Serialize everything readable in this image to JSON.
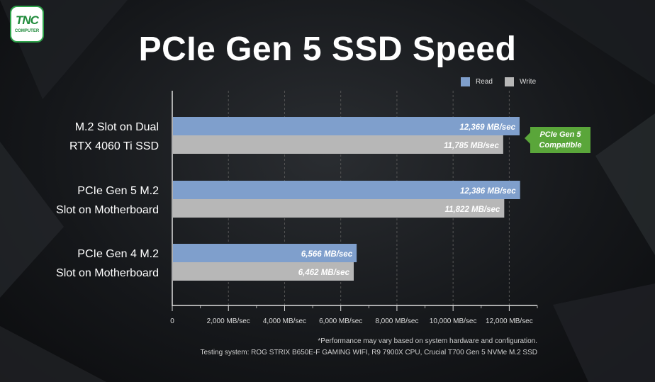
{
  "logo": {
    "main": "TNC",
    "sub": "COMPUTER"
  },
  "colors": {
    "read": "#7f9fcc",
    "write": "#b7b7b7",
    "badge": "#5aa63a"
  },
  "legend": {
    "read": "Read",
    "write": "Write"
  },
  "badge": {
    "line1": "PCIe Gen 5",
    "line2": "Compatible"
  },
  "footnotes": [
    "*Performance may vary based on system hardware and configuration.",
    "Testing system: ROG STRIX B650E-F GAMING WIFI, R9 7900X CPU, Crucial T700 Gen 5 NVMe M.2 SSD"
  ],
  "chart_data": {
    "type": "bar",
    "orientation": "horizontal",
    "title": "PCIe Gen 5 SSD Speed",
    "categories": [
      [
        "M.2 Slot on Dual",
        "RTX 4060 Ti SSD"
      ],
      [
        "PCIe Gen 5 M.2",
        "Slot on Motherboard"
      ],
      [
        "PCIe Gen 4 M.2",
        "Slot on Motherboard"
      ]
    ],
    "series": [
      {
        "name": "Read",
        "values": [
          12369,
          12386,
          6566
        ],
        "labels": [
          "12,369 MB/sec",
          "12,386 MB/sec",
          "6,566 MB/sec"
        ]
      },
      {
        "name": "Write",
        "values": [
          11785,
          11822,
          6462
        ],
        "labels": [
          "11,785 MB/sec",
          "11,822 MB/sec",
          "6,462 MB/sec"
        ]
      }
    ],
    "xlim": [
      0,
      13000
    ],
    "xticks": [
      0,
      2000,
      4000,
      6000,
      8000,
      10000,
      12000
    ],
    "xtick_labels": [
      "0",
      "2,000 MB/sec",
      "4,000 MB/sec",
      "6,000 MB/sec",
      "8,000 MB/sec",
      "10,000 MB/sec",
      "12,000 MB/sec"
    ],
    "grid": "vertical dashed",
    "legend": "top-right"
  }
}
